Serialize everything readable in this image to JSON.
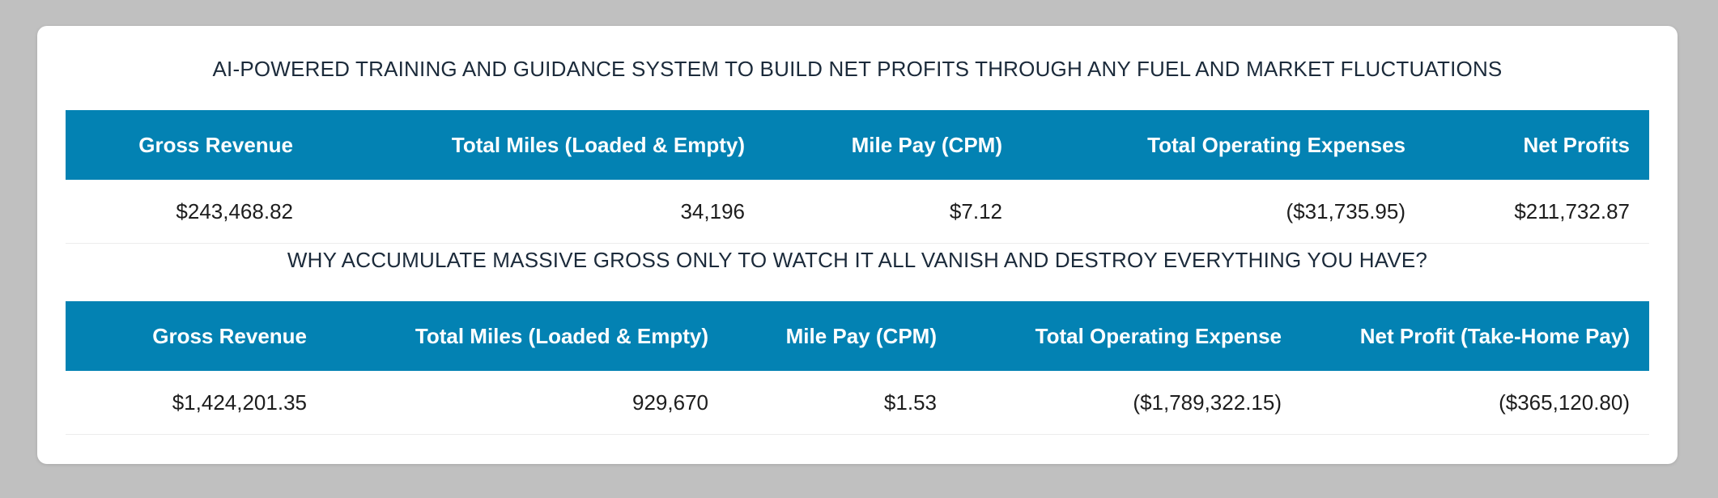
{
  "section1": {
    "title": "AI-POWERED TRAINING AND GUIDANCE SYSTEM TO BUILD NET PROFITS THROUGH ANY FUEL AND MARKET FLUCTUATIONS",
    "columns": [
      "Gross Revenue",
      "Total Miles (Loaded & Empty)",
      "Mile Pay (CPM)",
      "Total Operating Expenses",
      "Net Profits"
    ],
    "rows": [
      [
        "$243,468.82",
        "34,196",
        "$7.12",
        "($31,735.95)",
        "$211,732.87"
      ]
    ]
  },
  "section2": {
    "title": "WHY ACCUMULATE MASSIVE GROSS ONLY TO WATCH IT ALL VANISH AND DESTROY EVERYTHING YOU HAVE?",
    "columns": [
      "Gross Revenue",
      "Total Miles (Loaded & Empty)",
      "Mile Pay (CPM)",
      "Total Operating Expense",
      "Net Profit (Take-Home Pay)"
    ],
    "rows": [
      [
        "$1,424,201.35",
        "929,670",
        "$1.53",
        "($1,789,322.15)",
        "($365,120.80)"
      ]
    ]
  },
  "colors": {
    "header_bg": "#0382b3",
    "header_text": "#ffffff",
    "page_bg": "#c0c0c0",
    "card_bg": "#ffffff",
    "title_text": "#1b2a3a"
  }
}
